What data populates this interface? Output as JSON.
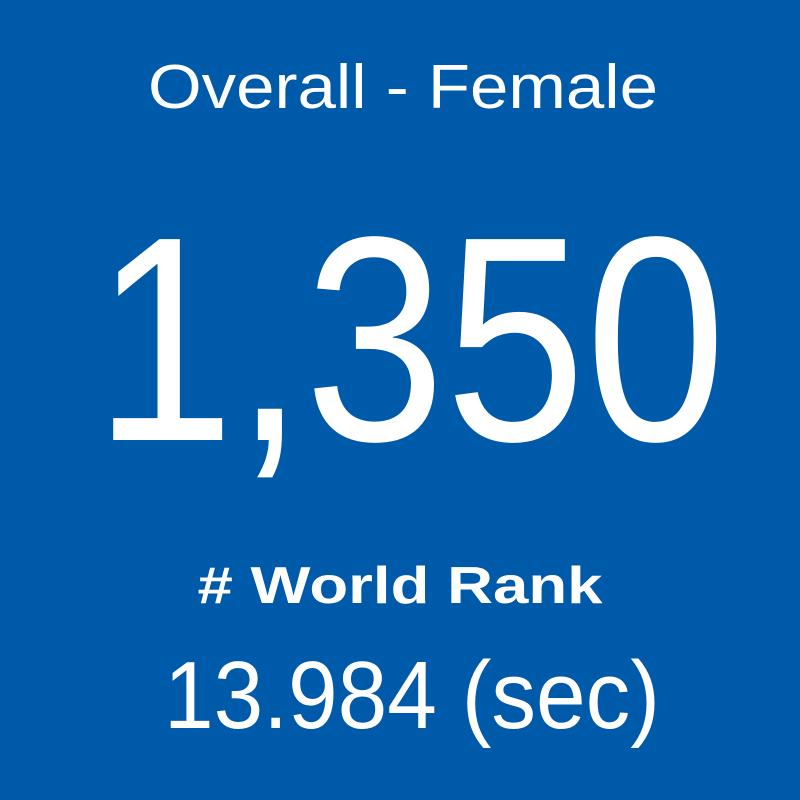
{
  "tile": {
    "title": "Overall - Female",
    "value": "1,350",
    "label": "# World Rank",
    "time": "13.984 (sec)"
  }
}
